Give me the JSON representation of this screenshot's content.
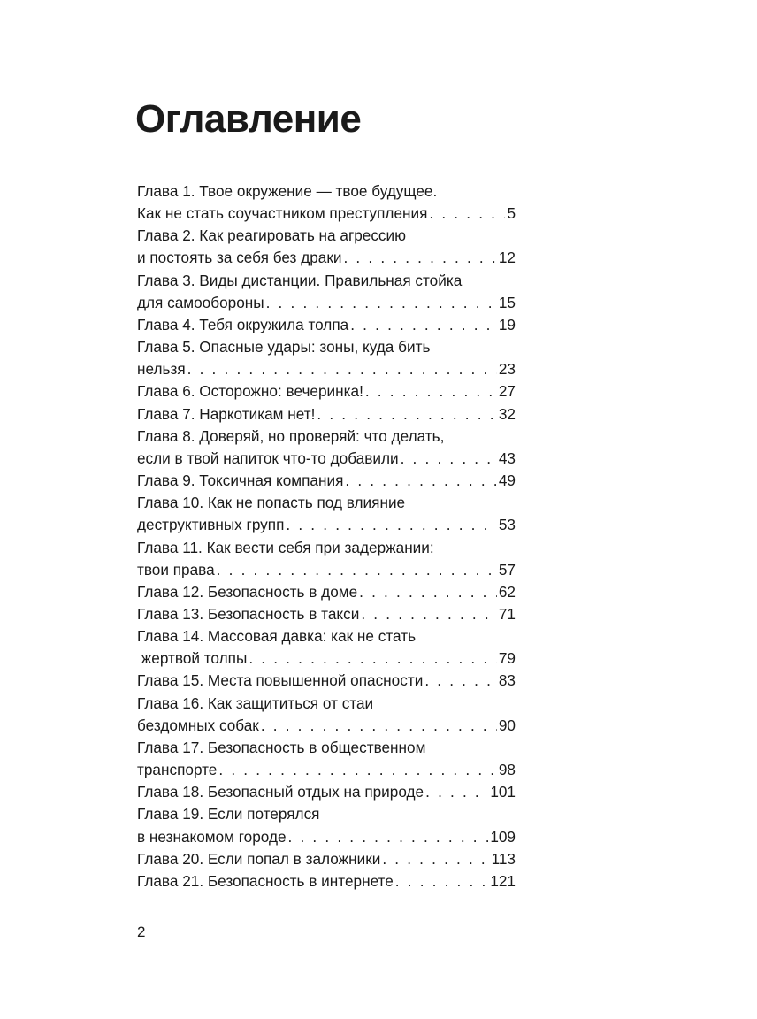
{
  "title": "Оглавление",
  "toc": [
    {
      "text": "Глава 1. Твое окружение — твое будущее."
    },
    {
      "text": "Как не стать соучастником преступления",
      "page": "5"
    },
    {
      "text": "Глава 2. Как реагировать на агрессию"
    },
    {
      "text": "и постоять за себя без драки",
      "page": "12"
    },
    {
      "text": "Глава 3. Виды дистанции. Правильная стойка"
    },
    {
      "text": "для самообороны",
      "page": "15"
    },
    {
      "text": "Глава 4. Тебя окружила толпа",
      "page": "19"
    },
    {
      "text": "Глава 5. Опасные удары: зоны, куда бить"
    },
    {
      "text": "нельзя",
      "page": "23"
    },
    {
      "text": "Глава 6. Осторожно: вечеринка!",
      "page": "27"
    },
    {
      "text": "Глава 7. Наркотикам нет!",
      "page": "32"
    },
    {
      "text": "Глава 8. Доверяй, но проверяй: что делать,"
    },
    {
      "text": "если в твой напиток что-то добавили",
      "page": "43"
    },
    {
      "text": "Глава 9. Токсичная компания",
      "page": "49"
    },
    {
      "text": "Глава 10. Как не попасть под влияние"
    },
    {
      "text": "деструктивных групп",
      "page": "53"
    },
    {
      "text": "Глава 11. Как вести себя при задержании:"
    },
    {
      "text": "твои права",
      "page": "57"
    },
    {
      "text": "Глава 12. Безопасность в доме",
      "page": "62"
    },
    {
      "text": "Глава 13. Безопасность в такси",
      "page": "71"
    },
    {
      "text": "Глава 14. Массовая давка: как не стать"
    },
    {
      "text": " жертвой толпы",
      "page": "79"
    },
    {
      "text": "Глава 15. Места повышенной опасности",
      "page": "83"
    },
    {
      "text": "Глава 16. Как защититься от стаи"
    },
    {
      "text": "бездомных собак",
      "page": "90"
    },
    {
      "text": "Глава 17. Безопасность в общественном"
    },
    {
      "text": "транспорте",
      "page": "98"
    },
    {
      "text": "Глава 18. Безопасный отдых на природе",
      "page": "101"
    },
    {
      "text": "Глава 19. Если потерялся"
    },
    {
      "text": "в незнакомом городе",
      "page": "109"
    },
    {
      "text": "Глава 20. Если попал в заложники",
      "page": "113"
    },
    {
      "text": "Глава 21. Безопасность в интернете",
      "page": "121"
    }
  ],
  "page_number": "2"
}
